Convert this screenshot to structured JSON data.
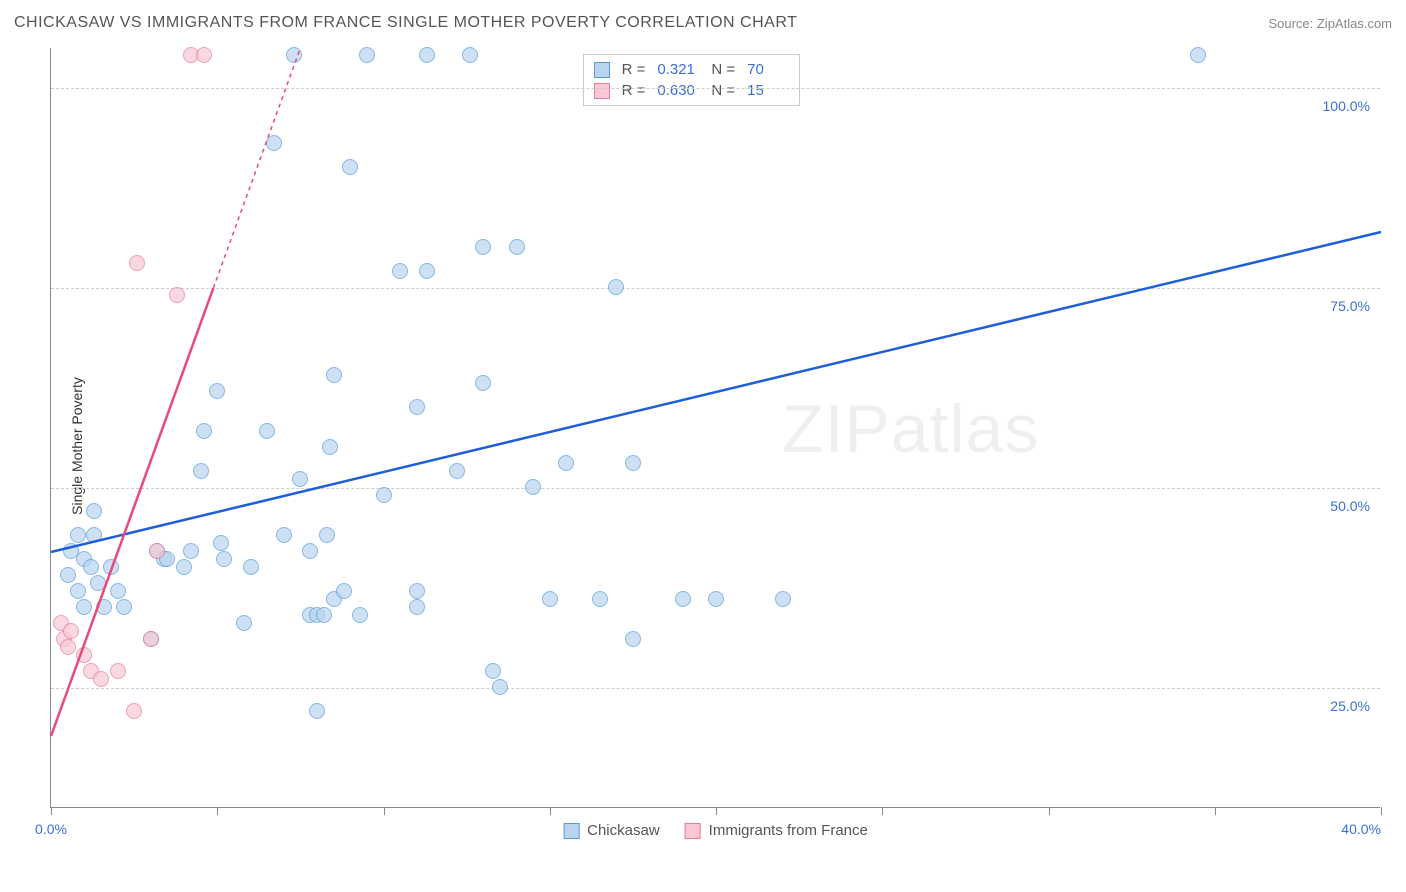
{
  "title": "CHICKASAW VS IMMIGRANTS FROM FRANCE SINGLE MOTHER POVERTY CORRELATION CHART",
  "source_label": "Source: ZipAtlas.com",
  "y_axis_label": "Single Mother Poverty",
  "watermark": "ZIPatlas",
  "chart": {
    "type": "scatter",
    "xlim": [
      0,
      40
    ],
    "ylim": [
      10,
      105
    ],
    "y_ticks": [
      25,
      50,
      75,
      100
    ],
    "y_tick_labels": [
      "25.0%",
      "50.0%",
      "75.0%",
      "100.0%"
    ],
    "x_ticks": [
      0,
      5,
      10,
      15,
      20,
      25,
      30,
      35,
      40
    ],
    "x_tick_labels_shown": {
      "0": "0.0%",
      "40": "40.0%"
    },
    "grid_color": "#cccccc",
    "background_color": "#ffffff",
    "axis_color": "#888888",
    "tick_label_color": "#3b6fd6",
    "marker_radius": 8,
    "marker_style": "circle",
    "series": [
      {
        "name": "Chickasaw",
        "fill_color": "#b8d4f0",
        "stroke_color": "#5a9bd4",
        "trend_color": "#1e5fd6",
        "trend_width": 2.5,
        "trend_dash_above": true,
        "R": "0.321",
        "N": "70",
        "trend": {
          "x0": 0,
          "y0": 42,
          "x1": 40,
          "y1": 82
        },
        "points": [
          [
            0.5,
            39
          ],
          [
            0.6,
            42
          ],
          [
            0.8,
            37
          ],
          [
            0.8,
            44
          ],
          [
            1.0,
            41
          ],
          [
            1.0,
            35
          ],
          [
            1.2,
            40
          ],
          [
            1.3,
            44
          ],
          [
            1.3,
            47
          ],
          [
            1.4,
            38
          ],
          [
            1.6,
            35
          ],
          [
            1.8,
            40
          ],
          [
            2.0,
            37
          ],
          [
            2.2,
            35
          ],
          [
            3.0,
            31
          ],
          [
            3.2,
            42
          ],
          [
            3.4,
            41
          ],
          [
            3.5,
            41
          ],
          [
            4.0,
            40
          ],
          [
            4.2,
            42
          ],
          [
            4.5,
            52
          ],
          [
            4.6,
            57
          ],
          [
            5.0,
            62
          ],
          [
            5.1,
            43
          ],
          [
            5.2,
            41
          ],
          [
            5.8,
            33
          ],
          [
            6.0,
            40
          ],
          [
            6.5,
            57
          ],
          [
            6.7,
            93
          ],
          [
            7.0,
            44
          ],
          [
            7.3,
            104
          ],
          [
            7.5,
            51
          ],
          [
            7.8,
            34
          ],
          [
            7.8,
            42
          ],
          [
            8.0,
            22
          ],
          [
            8.0,
            34
          ],
          [
            8.2,
            34
          ],
          [
            8.3,
            44
          ],
          [
            8.4,
            55
          ],
          [
            8.5,
            64
          ],
          [
            8.5,
            36
          ],
          [
            8.8,
            37
          ],
          [
            9.0,
            90
          ],
          [
            9.3,
            34
          ],
          [
            9.5,
            104
          ],
          [
            10.0,
            49
          ],
          [
            10.5,
            77
          ],
          [
            11.0,
            37
          ],
          [
            11.0,
            35
          ],
          [
            11.0,
            60
          ],
          [
            11.3,
            77
          ],
          [
            11.3,
            104
          ],
          [
            12.2,
            52
          ],
          [
            12.6,
            104
          ],
          [
            13.0,
            63
          ],
          [
            13.0,
            80
          ],
          [
            13.3,
            27
          ],
          [
            13.5,
            25
          ],
          [
            14.0,
            80
          ],
          [
            14.5,
            50
          ],
          [
            15.0,
            36
          ],
          [
            15.5,
            53
          ],
          [
            16.5,
            36
          ],
          [
            17.0,
            75
          ],
          [
            17.5,
            53
          ],
          [
            17.5,
            31
          ],
          [
            19.0,
            36
          ],
          [
            20.0,
            36
          ],
          [
            22.0,
            36
          ],
          [
            34.5,
            104
          ]
        ]
      },
      {
        "name": "Immigrants from France",
        "fill_color": "#f8c8d4",
        "stroke_color": "#e87a9b",
        "trend_color": "#e84a7a",
        "trend_width": 2.5,
        "trend_dash_above": true,
        "R": "0.630",
        "N": "15",
        "trend": {
          "x0": 0,
          "y0": 19,
          "x1": 7.5,
          "y1": 105
        },
        "points": [
          [
            0.3,
            33
          ],
          [
            0.4,
            31
          ],
          [
            0.5,
            30
          ],
          [
            0.6,
            32
          ],
          [
            1.0,
            29
          ],
          [
            1.2,
            27
          ],
          [
            1.5,
            26
          ],
          [
            2.0,
            27
          ],
          [
            2.5,
            22
          ],
          [
            2.6,
            78
          ],
          [
            3.0,
            31
          ],
          [
            3.2,
            42
          ],
          [
            3.8,
            74
          ],
          [
            4.2,
            104
          ],
          [
            4.6,
            104
          ]
        ]
      }
    ]
  },
  "stat_box": {
    "rows": [
      {
        "swatch_fill": "#b8d4f0",
        "swatch_stroke": "#5a9bd4",
        "r_label": "R =",
        "r_val": "0.321",
        "n_label": "N =",
        "n_val": "70"
      },
      {
        "swatch_fill": "#f8c8d4",
        "swatch_stroke": "#e87a9b",
        "r_label": "R =",
        "r_val": "0.630",
        "n_label": "N =",
        "n_val": "15"
      }
    ]
  },
  "bottom_legend": [
    {
      "swatch_fill": "#b8d4f0",
      "swatch_stroke": "#5a9bd4",
      "label": "Chickasaw"
    },
    {
      "swatch_fill": "#f8c8d4",
      "swatch_stroke": "#e87a9b",
      "label": "Immigrants from France"
    }
  ]
}
